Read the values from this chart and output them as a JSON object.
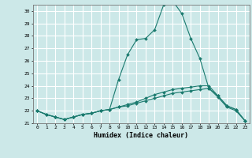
{
  "xlabel": "Humidex (Indice chaleur)",
  "ylabel": "",
  "background_color": "#cce8e8",
  "grid_color": "#ffffff",
  "line_color": "#1a7a6e",
  "xlim": [
    -0.5,
    23.5
  ],
  "ylim": [
    21,
    30.5
  ],
  "yticks": [
    21,
    22,
    23,
    24,
    25,
    26,
    27,
    28,
    29,
    30
  ],
  "xticks": [
    0,
    1,
    2,
    3,
    4,
    5,
    6,
    7,
    8,
    9,
    10,
    11,
    12,
    13,
    14,
    15,
    16,
    17,
    18,
    19,
    20,
    21,
    22,
    23
  ],
  "lines": [
    {
      "x": [
        0,
        1,
        2,
        3,
        4,
        5,
        6,
        7,
        8,
        9,
        10,
        11,
        12,
        13,
        14,
        15,
        16,
        17,
        18,
        19,
        20,
        21,
        22,
        23
      ],
      "y": [
        22.0,
        21.7,
        21.5,
        21.3,
        21.5,
        21.7,
        21.8,
        22.0,
        22.1,
        24.5,
        26.5,
        27.7,
        27.8,
        28.5,
        30.5,
        30.8,
        29.8,
        27.8,
        26.2,
        23.8,
        23.2,
        22.4,
        22.1,
        21.2
      ]
    },
    {
      "x": [
        0,
        1,
        2,
        3,
        4,
        5,
        6,
        7,
        8,
        9,
        10,
        11,
        12,
        13,
        14,
        15,
        16,
        17,
        18,
        19,
        20,
        21,
        22,
        23
      ],
      "y": [
        22.0,
        21.7,
        21.5,
        21.3,
        21.5,
        21.7,
        21.8,
        22.0,
        22.1,
        22.3,
        22.5,
        22.7,
        23.0,
        23.3,
        23.5,
        23.7,
        23.8,
        23.9,
        24.0,
        24.0,
        23.2,
        22.4,
        22.1,
        21.2
      ]
    },
    {
      "x": [
        0,
        1,
        2,
        3,
        4,
        5,
        6,
        7,
        8,
        9,
        10,
        11,
        12,
        13,
        14,
        15,
        16,
        17,
        18,
        19,
        20,
        21,
        22,
        23
      ],
      "y": [
        22.0,
        21.7,
        21.5,
        21.3,
        21.5,
        21.7,
        21.8,
        22.0,
        22.1,
        22.3,
        22.4,
        22.6,
        22.8,
        23.0,
        23.2,
        23.4,
        23.5,
        23.6,
        23.7,
        23.8,
        23.1,
        22.3,
        22.0,
        21.2
      ]
    }
  ]
}
